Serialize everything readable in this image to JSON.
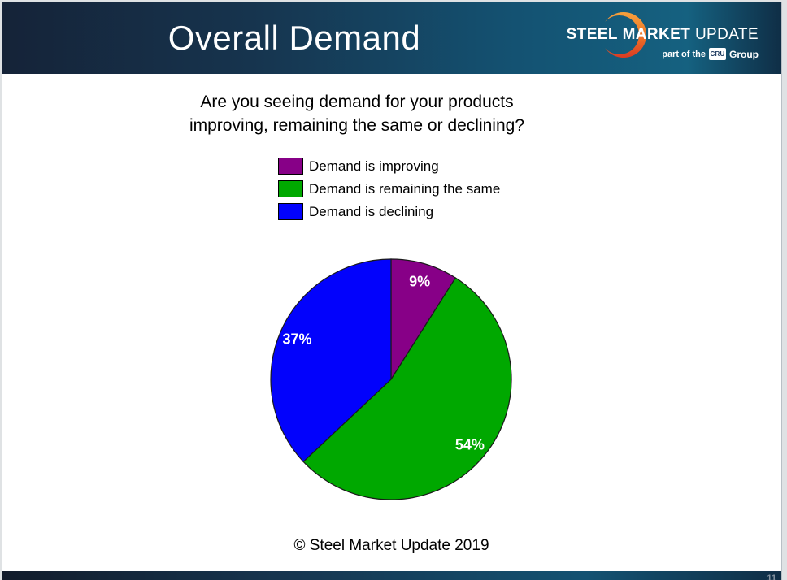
{
  "header": {
    "title": "Overall Demand",
    "logo": {
      "brand": {
        "steel": "STEEL",
        "market": "MARKET",
        "update": "UPDATE"
      },
      "tagline": {
        "prefix": "part of the",
        "box": "CRU",
        "suffix": "Group"
      }
    }
  },
  "question": {
    "line1": "Are you seeing demand for your products",
    "line2": "improving, remaining the same or declining?"
  },
  "chart_data": {
    "type": "pie",
    "title": "Are you seeing demand for your products improving, remaining the same or declining?",
    "labels": [
      "Demand is improving",
      "Demand is remaining the same",
      "Demand is declining"
    ],
    "values": [
      9,
      54,
      37
    ],
    "value_labels": [
      "9%",
      "54%",
      "37%"
    ],
    "colors": [
      "#870087",
      "#00a800",
      "#0202fc"
    ],
    "edge_color": "#1a1a1a",
    "data_label_color": "#ffffff",
    "start_angle_deg": 0,
    "direction": "clockwise",
    "legend_position": "top-center"
  },
  "footer": {
    "copyright": "© Steel Market Update 2019"
  },
  "page": {
    "slide_number": "11"
  },
  "colors": {
    "header_dark": "#152338",
    "header_light": "#156180",
    "slide_bg": "#ffffff",
    "logo_orange_top": "#f6a13c",
    "logo_orange_bottom": "#d93a23"
  }
}
